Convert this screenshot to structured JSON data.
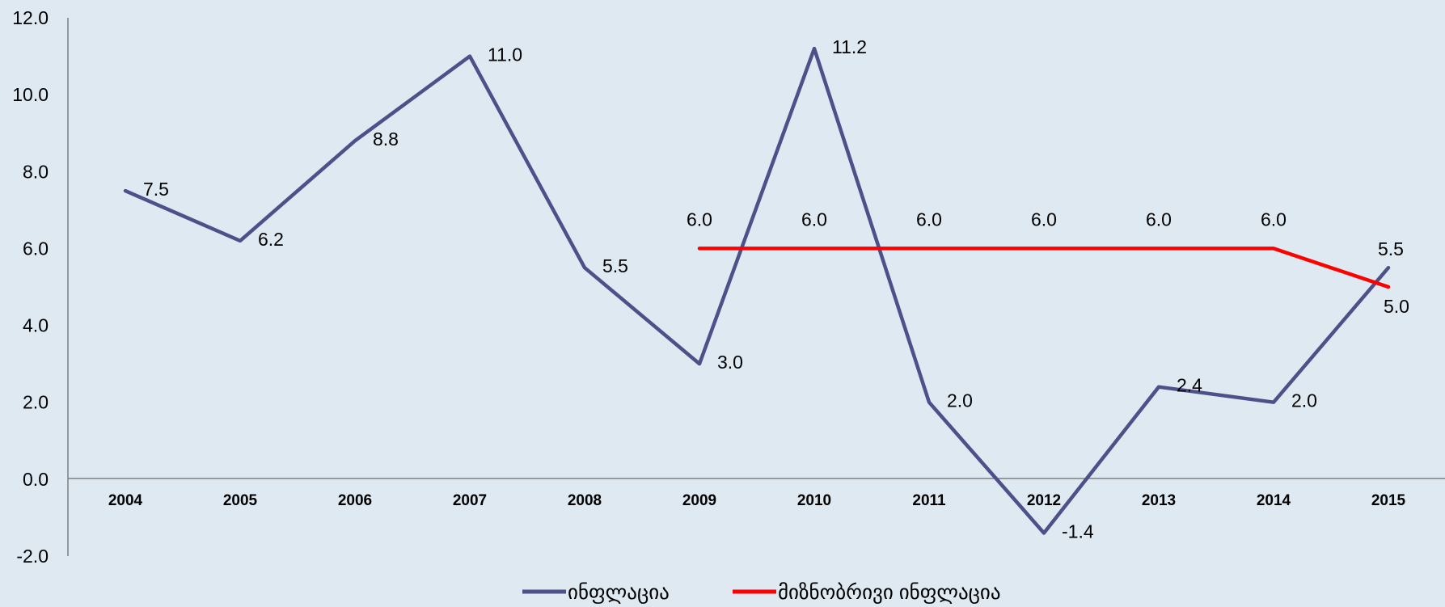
{
  "chart_data": {
    "type": "line",
    "categories": [
      "2004",
      "2005",
      "2006",
      "2007",
      "2008",
      "2009",
      "2010",
      "2011",
      "2012",
      "2013",
      "2014",
      "2015"
    ],
    "ylim": [
      -2,
      12
    ],
    "yticks": [
      -2,
      0,
      2,
      4,
      6,
      8,
      10,
      12
    ],
    "ytick_labels": [
      "-2.0",
      "0.0",
      "2.0",
      "4.0",
      "6.0",
      "8.0",
      "10.0",
      "12.0"
    ],
    "grid": false,
    "legend_position": "bottom",
    "series": [
      {
        "name": "ინფლაცია",
        "color": "#4e5089",
        "values": [
          7.5,
          6.2,
          8.8,
          11.0,
          5.5,
          3.0,
          11.2,
          2.0,
          -1.4,
          2.4,
          2.0,
          5.5
        ],
        "labels": [
          "7.5",
          "6.2",
          "8.8",
          "11.0",
          "5.5",
          "3.0",
          "11.2",
          "2.0",
          "-1.4",
          "2.4",
          "2.0",
          "5.5"
        ]
      },
      {
        "name": "მიზნობრივი ინფლაცია",
        "color": "#ff0000",
        "values": [
          null,
          null,
          null,
          null,
          null,
          6.0,
          6.0,
          6.0,
          6.0,
          6.0,
          6.0,
          5.0
        ],
        "labels": [
          null,
          null,
          null,
          null,
          null,
          "6.0",
          "6.0",
          "6.0",
          "6.0",
          "6.0",
          "6.0",
          "5.0"
        ]
      }
    ]
  }
}
